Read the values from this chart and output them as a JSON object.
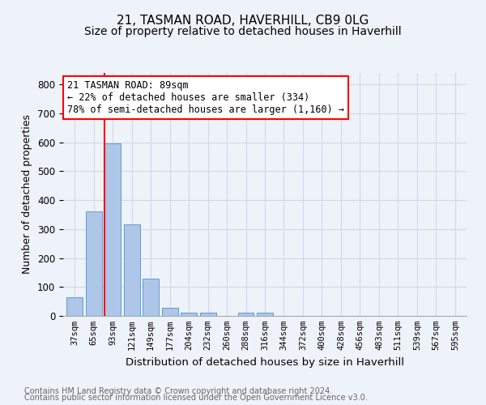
{
  "title1": "21, TASMAN ROAD, HAVERHILL, CB9 0LG",
  "title2": "Size of property relative to detached houses in Haverhill",
  "xlabel": "Distribution of detached houses by size in Haverhill",
  "ylabel": "Number of detached properties",
  "footnote1": "Contains HM Land Registry data © Crown copyright and database right 2024.",
  "footnote2": "Contains public sector information licensed under the Open Government Licence v3.0.",
  "bar_labels": [
    "37sqm",
    "65sqm",
    "93sqm",
    "121sqm",
    "149sqm",
    "177sqm",
    "204sqm",
    "232sqm",
    "260sqm",
    "288sqm",
    "316sqm",
    "344sqm",
    "372sqm",
    "400sqm",
    "428sqm",
    "456sqm",
    "483sqm",
    "511sqm",
    "539sqm",
    "567sqm",
    "595sqm"
  ],
  "bar_values": [
    65,
    360,
    597,
    317,
    128,
    27,
    10,
    10,
    0,
    10,
    10,
    0,
    0,
    0,
    0,
    0,
    0,
    0,
    0,
    0,
    0
  ],
  "bar_color": "#aec6e8",
  "bar_edge_color": "#5a9fd4",
  "property_line_color": "red",
  "annotation_text": "21 TASMAN ROAD: 89sqm\n← 22% of detached houses are smaller (334)\n78% of semi-detached houses are larger (1,160) →",
  "annotation_box_color": "white",
  "annotation_box_edge_color": "red",
  "annotation_fontsize": 8.5,
  "ylim": [
    0,
    840
  ],
  "yticks": [
    0,
    100,
    200,
    300,
    400,
    500,
    600,
    700,
    800
  ],
  "grid_color": "#d0d8e8",
  "background_color": "#eef2f9",
  "title1_fontsize": 11,
  "title2_fontsize": 10,
  "xlabel_fontsize": 9.5,
  "ylabel_fontsize": 9,
  "footnote_fontsize": 7
}
